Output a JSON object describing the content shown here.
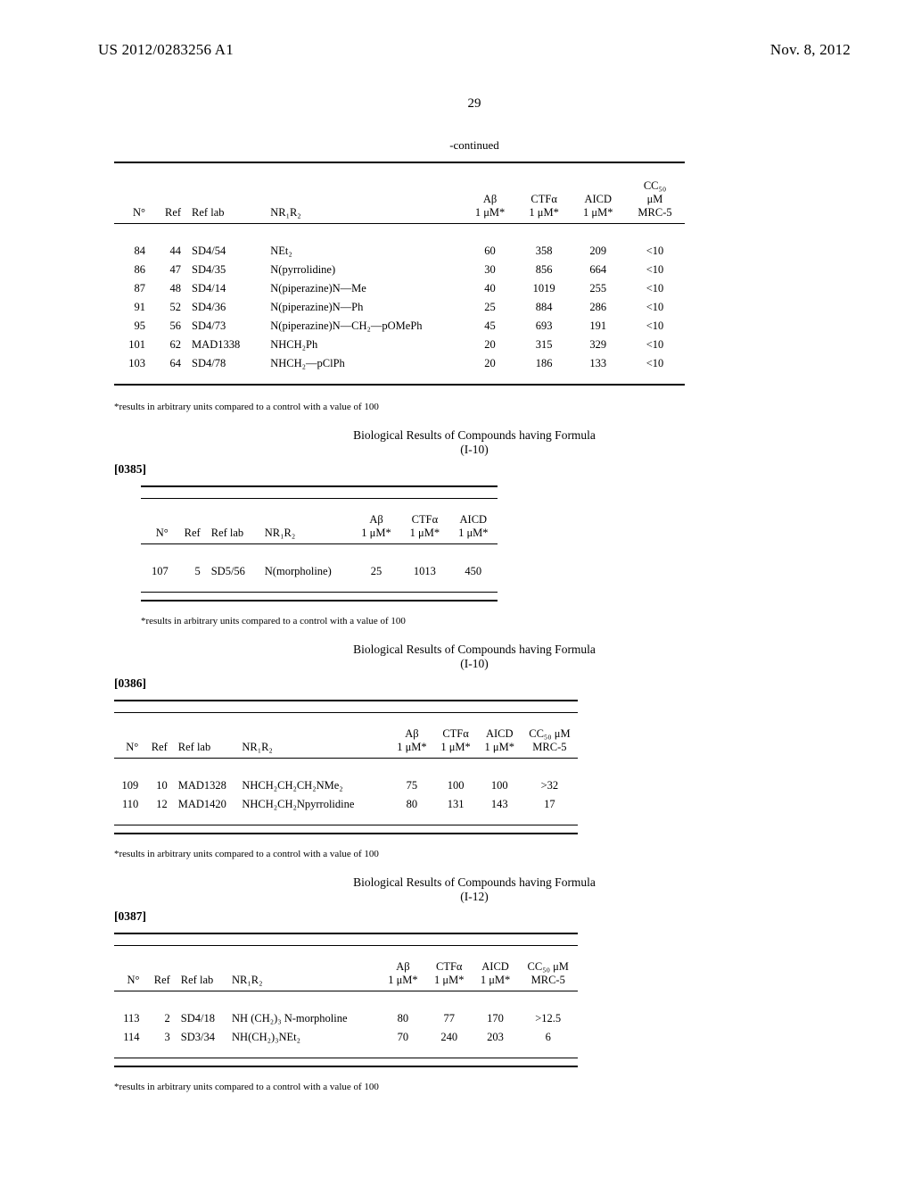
{
  "header": {
    "pub_no": "US 2012/0283256 A1",
    "date": "Nov. 8, 2012",
    "page_number": "29"
  },
  "table1": {
    "continued": "-continued",
    "headers": {
      "n": "N°",
      "ref": "Ref",
      "reflab": "Ref lab",
      "nr": "NR₁R₂",
      "ab": "Aβ\n1 μM*",
      "ctfa": "CTFα\n1 μM*",
      "aicd": "AICD\n1 μM*",
      "cc50": "CC₅₀\nμM\nMRC-5"
    },
    "rows": [
      {
        "n": "84",
        "ref": "44",
        "reflab": "SD4/54",
        "nr": "NEt₂",
        "ab": "60",
        "ctfa": "358",
        "aicd": "209",
        "cc50": "<10"
      },
      {
        "n": "86",
        "ref": "47",
        "reflab": "SD4/35",
        "nr": "N(pyrrolidine)",
        "ab": "30",
        "ctfa": "856",
        "aicd": "664",
        "cc50": "<10"
      },
      {
        "n": "87",
        "ref": "48",
        "reflab": "SD4/14",
        "nr": "N(piperazine)N—Me",
        "ab": "40",
        "ctfa": "1019",
        "aicd": "255",
        "cc50": "<10"
      },
      {
        "n": "91",
        "ref": "52",
        "reflab": "SD4/36",
        "nr": "N(piperazine)N—Ph",
        "ab": "25",
        "ctfa": "884",
        "aicd": "286",
        "cc50": "<10"
      },
      {
        "n": "95",
        "ref": "56",
        "reflab": "SD4/73",
        "nr": "N(piperazine)N—CH₂—pOMePh",
        "ab": "45",
        "ctfa": "693",
        "aicd": "191",
        "cc50": "<10"
      },
      {
        "n": "101",
        "ref": "62",
        "reflab": "MAD1338",
        "nr": "NHCH₂Ph",
        "ab": "20",
        "ctfa": "315",
        "aicd": "329",
        "cc50": "<10"
      },
      {
        "n": "103",
        "ref": "64",
        "reflab": "SD4/78",
        "nr": "NHCH₂—pClPh",
        "ab": "20",
        "ctfa": "186",
        "aicd": "133",
        "cc50": "<10"
      }
    ],
    "footnote": "*results in arbitrary units compared to a control with a value of 100"
  },
  "section2": {
    "title": "Biological Results of Compounds having Formula\n(I-10)",
    "para": "[0385]"
  },
  "table2": {
    "headers": {
      "n": "N°",
      "ref": "Ref",
      "reflab": "Ref lab",
      "nr": "NR₁R₂",
      "ab": "Aβ\n1 μM*",
      "ctfa": "CTFα\n1 μM*",
      "aicd": "AICD\n1 μM*"
    },
    "rows": [
      {
        "n": "107",
        "ref": "5",
        "reflab": "SD5/56",
        "nr": "N(morpholine)",
        "ab": "25",
        "ctfa": "1013",
        "aicd": "450"
      }
    ],
    "footnote": "*results in arbitrary units compared to a control with a value of 100"
  },
  "section3": {
    "title": "Biological Results of Compounds having Formula\n(I-10)",
    "para": "[0386]"
  },
  "table3": {
    "headers": {
      "n": "N°",
      "ref": "Ref",
      "reflab": "Ref lab",
      "nr": "NR₁R₂",
      "ab": "Aβ\n1 μM*",
      "ctfa": "CTFα\n1 μM*",
      "aicd": "AICD\n1 μM*",
      "cc50": "CC₅₀ μM\nMRC-5"
    },
    "rows": [
      {
        "n": "109",
        "ref": "10",
        "reflab": "MAD1328",
        "nr": "NHCH₂CH₂CH₂NMe₂",
        "ab": "75",
        "ctfa": "100",
        "aicd": "100",
        "cc50": ">32"
      },
      {
        "n": "110",
        "ref": "12",
        "reflab": "MAD1420",
        "nr": "NHCH₂CH₂Npyrrolidine",
        "ab": "80",
        "ctfa": "131",
        "aicd": "143",
        "cc50": "17"
      }
    ],
    "footnote": "*results in arbitrary units compared to a control with a value of 100"
  },
  "section4": {
    "title": "Biological Results of Compounds having Formula\n(I-12)",
    "para": "[0387]"
  },
  "table4": {
    "headers": {
      "n": "N°",
      "ref": "Ref",
      "reflab": "Ref lab",
      "nr": "NR₁R₂",
      "ab": "Aβ\n1 μM*",
      "ctfa": "CTFα\n1 μM*",
      "aicd": "AICD\n1 μM*",
      "cc50": "CC₅₀ μM\nMRC-5"
    },
    "rows": [
      {
        "n": "113",
        "ref": "2",
        "reflab": "SD4/18",
        "nr": "NH (CH₂)₃ N-morpholine",
        "ab": "80",
        "ctfa": "77",
        "aicd": "170",
        "cc50": ">12.5"
      },
      {
        "n": "114",
        "ref": "3",
        "reflab": "SD3/34",
        "nr": "NH(CH₂)₃NEt₂",
        "ab": "70",
        "ctfa": "240",
        "aicd": "203",
        "cc50": "6"
      }
    ],
    "footnote": "*results in arbitrary units compared to a control with a value of 100"
  }
}
